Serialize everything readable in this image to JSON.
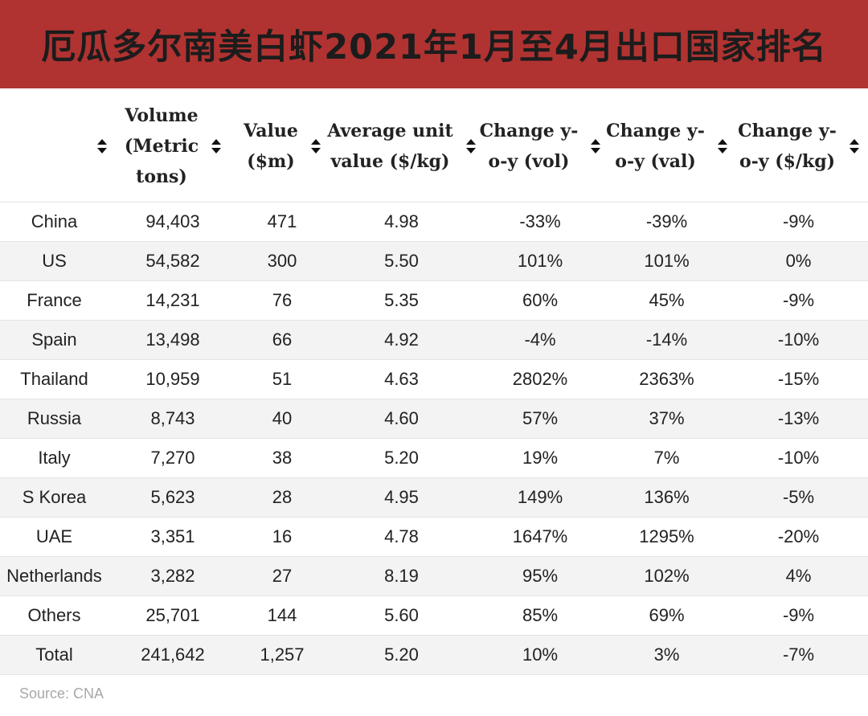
{
  "title": "厄瓜多尔南美白虾2021年1月至4月出口国家排名",
  "columns": [
    {
      "label": "",
      "lines": []
    },
    {
      "label": "Volume (Metric tons)",
      "lines": [
        "Volume",
        "(Metric",
        "tons)"
      ]
    },
    {
      "label": "Value ($m)",
      "lines": [
        "Value",
        "($m)"
      ]
    },
    {
      "label": "Average unit value ($/kg)",
      "lines": [
        "Average unit",
        "value ($/kg)"
      ]
    },
    {
      "label": "Change y-o-y (vol)",
      "lines": [
        "Change y-",
        "o-y (vol)"
      ]
    },
    {
      "label": "Change y-o-y (val)",
      "lines": [
        "Change y-",
        "o-y (val)"
      ]
    },
    {
      "label": "Change y-o-y ($/kg)",
      "lines": [
        "Change y-",
        "o-y ($/kg)"
      ]
    }
  ],
  "rows": [
    [
      "China",
      "94,403",
      "471",
      "4.98",
      "-33%",
      "-39%",
      "-9%"
    ],
    [
      "US",
      "54,582",
      "300",
      "5.50",
      "101%",
      "101%",
      "0%"
    ],
    [
      "France",
      "14,231",
      "76",
      "5.35",
      "60%",
      "45%",
      "-9%"
    ],
    [
      "Spain",
      "13,498",
      "66",
      "4.92",
      "-4%",
      "-14%",
      "-10%"
    ],
    [
      "Thailand",
      "10,959",
      "51",
      "4.63",
      "2802%",
      "2363%",
      "-15%"
    ],
    [
      "Russia",
      "8,743",
      "40",
      "4.60",
      "57%",
      "37%",
      "-13%"
    ],
    [
      "Italy",
      "7,270",
      "38",
      "5.20",
      "19%",
      "7%",
      "-10%"
    ],
    [
      "S Korea",
      "5,623",
      "28",
      "4.95",
      "149%",
      "136%",
      "-5%"
    ],
    [
      "UAE",
      "3,351",
      "16",
      "4.78",
      "1647%",
      "1295%",
      "-20%"
    ],
    [
      "Netherlands",
      "3,282",
      "27",
      "8.19",
      "95%",
      "102%",
      "4%"
    ],
    [
      "Others",
      "25,701",
      "144",
      "5.60",
      "85%",
      "69%",
      "-9%"
    ],
    [
      "Total",
      "241,642",
      "1,257",
      "5.20",
      "10%",
      "3%",
      "-7%"
    ]
  ],
  "source": "Source: CNA",
  "colors": {
    "banner": "#b03331",
    "title_text": "#1c1c1c",
    "stripe": "#f3f3f3"
  },
  "chart_data": {
    "type": "table",
    "title": "厄瓜多尔南美白虾2021年1月至4月出口国家排名",
    "headers": [
      "",
      "Volume (Metric tons)",
      "Value ($m)",
      "Average unit value ($/kg)",
      "Change y-o-y (vol)",
      "Change y-o-y (val)",
      "Change y-o-y ($/kg)"
    ],
    "rows": [
      [
        "China",
        94403,
        471,
        4.98,
        "-33%",
        "-39%",
        "-9%"
      ],
      [
        "US",
        54582,
        300,
        5.5,
        "101%",
        "101%",
        "0%"
      ],
      [
        "France",
        14231,
        76,
        5.35,
        "60%",
        "45%",
        "-9%"
      ],
      [
        "Spain",
        13498,
        66,
        4.92,
        "-4%",
        "-14%",
        "-10%"
      ],
      [
        "Thailand",
        10959,
        51,
        4.63,
        "2802%",
        "2363%",
        "-15%"
      ],
      [
        "Russia",
        8743,
        40,
        4.6,
        "57%",
        "37%",
        "-13%"
      ],
      [
        "Italy",
        7270,
        38,
        5.2,
        "19%",
        "7%",
        "-10%"
      ],
      [
        "S Korea",
        5623,
        28,
        4.95,
        "149%",
        "136%",
        "-5%"
      ],
      [
        "UAE",
        3351,
        16,
        4.78,
        "1647%",
        "1295%",
        "-20%"
      ],
      [
        "Netherlands",
        3282,
        27,
        8.19,
        "95%",
        "102%",
        "4%"
      ],
      [
        "Others",
        25701,
        144,
        5.6,
        "85%",
        "69%",
        "-9%"
      ],
      [
        "Total",
        241642,
        1257,
        5.2,
        "10%",
        "3%",
        "-7%"
      ]
    ]
  }
}
